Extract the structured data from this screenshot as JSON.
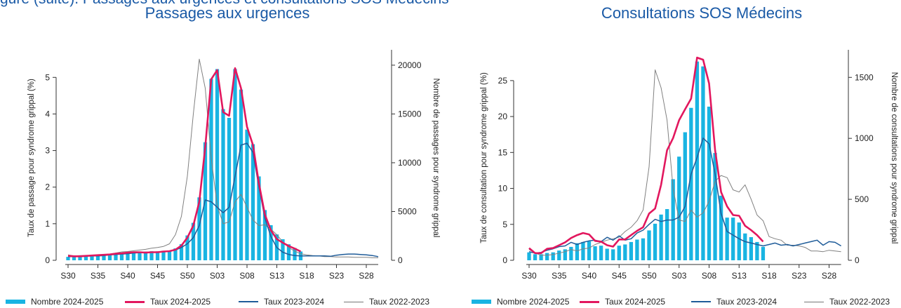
{
  "header_fragment": "gure (suite). Passages aux urgences et consultations SOS Médecins",
  "colors": {
    "bars": "#19b4e2",
    "rate_2024_2025": "#e2175e",
    "rate_2023_2024": "#1f5c99",
    "rate_2022_2023": "#808080",
    "title": "#1a5aa6"
  },
  "chart_data": [
    {
      "type": "bar",
      "title": "Passages aux urgences",
      "ylabel": "Taux de passage pour syndrome grippal (%)",
      "y2label": "Nombre de passages pour syndrome grippal",
      "ylim": [
        0,
        5.6
      ],
      "yticks": [
        0,
        1,
        2,
        3,
        4,
        5
      ],
      "y2lim": [
        0,
        21000
      ],
      "y2ticks": [
        0,
        5000,
        10000,
        15000,
        20000
      ],
      "x_tick_labels": [
        "S30",
        "S35",
        "S40",
        "S45",
        "S50",
        "S03",
        "S08",
        "S13",
        "S18",
        "S23",
        "S28"
      ],
      "weeks": 52,
      "bars_start_index": 0,
      "bars": [
        350,
        330,
        350,
        380,
        430,
        470,
        530,
        560,
        650,
        700,
        780,
        880,
        900,
        880,
        930,
        920,
        980,
        1000,
        1220,
        1660,
        2550,
        3840,
        6450,
        12100,
        18600,
        19600,
        15500,
        14600,
        19600,
        17500,
        13400,
        11900,
        8600,
        5150,
        3600,
        2650,
        2160,
        1640,
        1260,
        900
      ],
      "series": [
        {
          "name": "Taux 2024-2025",
          "values": [
            0.12,
            0.11,
            0.11,
            0.12,
            0.13,
            0.14,
            0.15,
            0.16,
            0.18,
            0.19,
            0.21,
            0.22,
            0.22,
            0.21,
            0.22,
            0.22,
            0.24,
            0.25,
            0.29,
            0.4,
            0.62,
            0.95,
            1.6,
            3.1,
            4.95,
            5.2,
            4.05,
            3.95,
            5.25,
            4.7,
            3.65,
            3.15,
            2.1,
            1.25,
            0.82,
            0.58,
            0.48,
            0.39,
            0.32,
            0.24
          ]
        },
        {
          "name": "Taux 2023-2024",
          "values": [
            0.1,
            0.1,
            0.1,
            0.11,
            0.12,
            0.12,
            0.13,
            0.15,
            0.16,
            0.17,
            0.18,
            0.2,
            0.21,
            0.22,
            0.22,
            0.22,
            0.23,
            0.25,
            0.28,
            0.35,
            0.45,
            0.62,
            0.95,
            1.65,
            1.6,
            1.45,
            1.3,
            1.45,
            2.3,
            3.15,
            3.2,
            2.95,
            2.0,
            1.15,
            0.65,
            0.35,
            0.22,
            0.16,
            0.13,
            0.12,
            0.12,
            0.12,
            0.12,
            0.12,
            0.11,
            0.14,
            0.16,
            0.17,
            0.17,
            0.16,
            0.15,
            0.13,
            0.1
          ]
        },
        {
          "name": "Taux 2022-2023",
          "values": [
            0.15,
            0.12,
            0.13,
            0.13,
            0.14,
            0.15,
            0.16,
            0.17,
            0.2,
            0.23,
            0.24,
            0.26,
            0.28,
            0.3,
            0.33,
            0.35,
            0.38,
            0.45,
            0.7,
            1.2,
            2.3,
            4.0,
            5.5,
            4.7,
            2.8,
            1.5,
            1.0,
            1.05,
            1.6,
            1.8,
            1.45,
            1.1,
            0.95,
            0.97,
            0.85,
            0.7,
            0.5,
            0.35,
            0.25,
            0.18,
            0.15,
            0.13,
            0.12,
            0.1,
            0.1,
            0.09,
            0.09,
            0.09,
            0.08,
            0.08,
            0.08,
            0.07,
            0.07
          ]
        }
      ]
    },
    {
      "type": "bar",
      "title": "Consultations SOS Médecins",
      "ylabel": "Taux de consultation pour syndrome grippal (%)",
      "y2label": "Nombre de consultations pour syndrome grippal",
      "ylim": [
        0,
        28.5
      ],
      "yticks": [
        0,
        5,
        10,
        15,
        20,
        25
      ],
      "y2lim": [
        0,
        1680
      ],
      "y2ticks": [
        0,
        500,
        1000,
        1500
      ],
      "x_tick_labels": [
        "S30",
        "S35",
        "S40",
        "S45",
        "S50",
        "S03",
        "S08",
        "S13",
        "S18",
        "S23",
        "S28"
      ],
      "weeks": 52,
      "bars_start_index": 0,
      "bars": [
        65,
        50,
        50,
        60,
        65,
        80,
        90,
        110,
        140,
        150,
        155,
        115,
        120,
        95,
        90,
        120,
        130,
        150,
        170,
        180,
        245,
        300,
        375,
        420,
        665,
        850,
        1050,
        1250,
        1630,
        1590,
        1260,
        880,
        530,
        350,
        350,
        310,
        220,
        190,
        150,
        110
      ],
      "series": [
        {
          "name": "Taux 2024-2025",
          "values": [
            1.7,
            1.0,
            1.0,
            1.6,
            1.7,
            2.1,
            2.5,
            3.1,
            3.5,
            3.8,
            3.6,
            2.7,
            2.6,
            2.1,
            1.9,
            2.9,
            2.9,
            3.5,
            4.1,
            4.6,
            6.5,
            7.2,
            10.5,
            15.3,
            17.0,
            19.5,
            21.0,
            22.5,
            28.2,
            27.9,
            24.6,
            15.3,
            9.5,
            7.5,
            6.3,
            6.2,
            4.8,
            4.2,
            3.5,
            2.6
          ]
        },
        {
          "name": "Taux 2023-2024",
          "values": [
            1.2,
            1.0,
            1.1,
            1.4,
            1.6,
            1.9,
            2.0,
            2.5,
            2.2,
            2.5,
            2.7,
            2.8,
            2.6,
            3.2,
            2.8,
            3.4,
            2.8,
            3.0,
            3.8,
            4.2,
            5.0,
            5.7,
            5.4,
            5.6,
            5.6,
            6.0,
            7.5,
            12.0,
            14.3,
            17.0,
            16.2,
            12.0,
            6.5,
            4.0,
            3.5,
            3.0,
            2.6,
            2.4,
            2.2,
            2.0,
            2.2,
            2.4,
            2.1,
            2.2,
            2.0,
            2.2,
            2.4,
            2.6,
            2.8,
            2.1,
            2.6,
            2.5,
            2.0
          ]
        },
        {
          "name": "Taux 2022-2023",
          "values": [
            1.5,
            1.0,
            0.7,
            0.7,
            0.8,
            1.0,
            1.2,
            1.5,
            1.3,
            1.6,
            1.7,
            2.2,
            2.5,
            2.8,
            3.0,
            3.2,
            4.0,
            4.6,
            5.5,
            7.0,
            13.0,
            26.5,
            24.0,
            19.5,
            10.0,
            5.6,
            5.4,
            7.0,
            6.0,
            6.6,
            8.2,
            11.0,
            11.8,
            11.5,
            9.8,
            9.5,
            10.5,
            8.5,
            6.3,
            5.5,
            3.3,
            3.0,
            2.8,
            2.1,
            2.1,
            2.0,
            1.8,
            1.3,
            1.3,
            1.2,
            1.4,
            1.3,
            1.2
          ]
        }
      ]
    }
  ],
  "legend": {
    "items": [
      {
        "label": "Nombre 2024-2025"
      },
      {
        "label": "Taux 2024-2025"
      },
      {
        "label": "Taux 2023-2024"
      },
      {
        "label": "Taux 2022-2023"
      }
    ]
  }
}
